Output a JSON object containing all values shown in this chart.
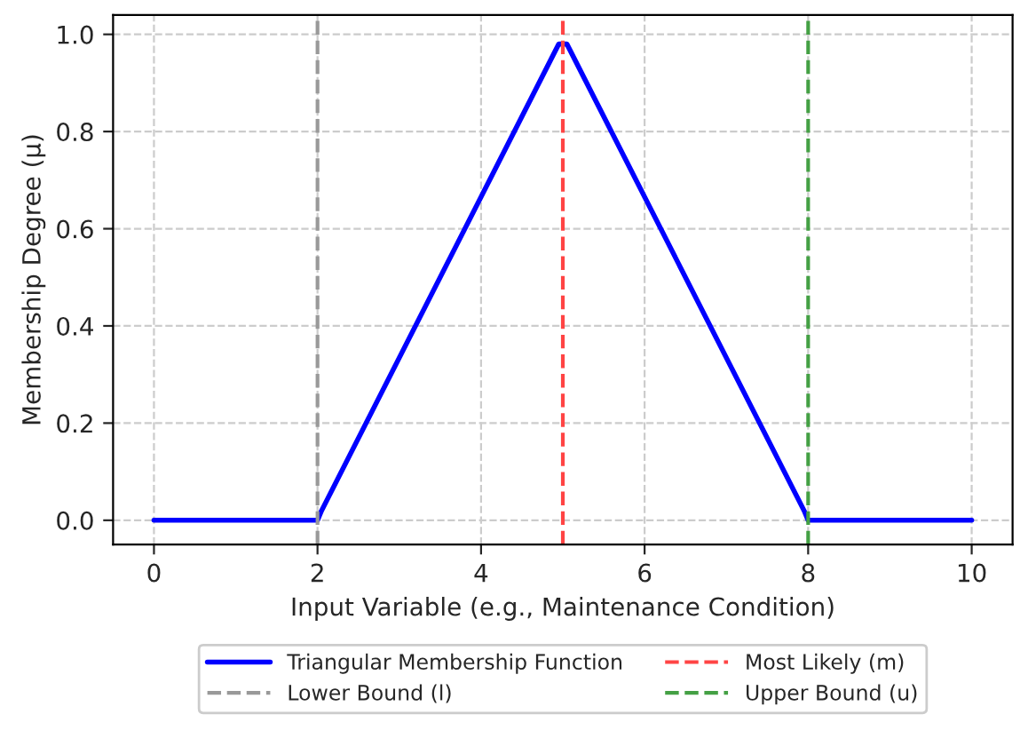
{
  "chart_data": {
    "type": "line",
    "xlabel": "Input Variable (e.g., Maintenance Condition)",
    "ylabel": "Membership Degree (μ)",
    "x": [
      0,
      2,
      2.05,
      4.95,
      5.05,
      7.95,
      8,
      10
    ],
    "series": [
      {
        "name": "Triangular Membership Function",
        "color": "#0000ff",
        "values": [
          0,
          0,
          0.02,
          0.98,
          0.98,
          0.02,
          0,
          0
        ]
      }
    ],
    "ref_lines": [
      {
        "axis": "x",
        "value": 2,
        "label": "Lower Bound (l)",
        "color": "#999999",
        "line_style": "dashed"
      },
      {
        "axis": "x",
        "value": 5,
        "label": "Most Likely (m)",
        "color": "#ff4444",
        "line_style": "dashed"
      },
      {
        "axis": "x",
        "value": 8,
        "label": "Upper Bound (u)",
        "color": "#44a044",
        "line_style": "dashed"
      }
    ],
    "xlim": [
      -0.5,
      10.5
    ],
    "ylim": [
      -0.05,
      1.04
    ],
    "xticks": [
      0,
      2,
      4,
      6,
      8,
      10
    ],
    "yticks": [
      {
        "value": 0,
        "label": "0.0"
      },
      {
        "value": 0.2,
        "label": "0.2"
      },
      {
        "value": 0.4,
        "label": "0.4"
      },
      {
        "value": 0.6,
        "label": "0.6"
      },
      {
        "value": 0.8,
        "label": "0.8"
      },
      {
        "value": 1,
        "label": "1.0"
      }
    ],
    "grid": true,
    "legend": "bottom",
    "marker": "none",
    "line_style": "solid"
  }
}
